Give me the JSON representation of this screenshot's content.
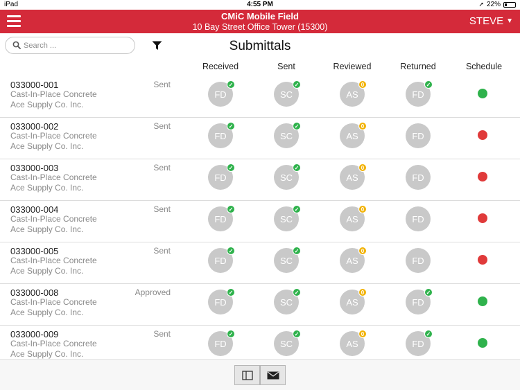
{
  "status_bar": {
    "carrier": "iPad",
    "time": "4:55 PM",
    "battery": "22%"
  },
  "header": {
    "app_title": "CMiC Mobile Field",
    "project": "10 Bay Street Office Tower (15300)",
    "user": "STEVE",
    "accent": "#d42a3a"
  },
  "search": {
    "placeholder": "Search ..."
  },
  "page_title": "Submittals",
  "columns": [
    "Received",
    "Sent",
    "Reviewed",
    "Returned",
    "Schedule"
  ],
  "colors": {
    "check": "#2fb24c",
    "count": "#f2b200",
    "on_time": "#2fb24c",
    "late": "#e03a3a",
    "circle": "#c9c9c9"
  },
  "rows": [
    {
      "number": "033000-001",
      "description": "Cast-In-Place Concrete",
      "vendor": "Ace Supply Co. Inc.",
      "status": "Sent",
      "received": {
        "initials": "FD",
        "badge": "check"
      },
      "sent": {
        "initials": "SC",
        "badge": "check"
      },
      "reviewed": {
        "initials": "AS",
        "badge": "0"
      },
      "returned": {
        "initials": "FD",
        "badge": "check"
      },
      "schedule": "green"
    },
    {
      "number": "033000-002",
      "description": "Cast-In-Place Concrete",
      "vendor": "Ace Supply Co. Inc.",
      "status": "Sent",
      "received": {
        "initials": "FD",
        "badge": "check"
      },
      "sent": {
        "initials": "SC",
        "badge": "check"
      },
      "reviewed": {
        "initials": "AS",
        "badge": "0"
      },
      "returned": {
        "initials": "FD",
        "badge": ""
      },
      "schedule": "red"
    },
    {
      "number": "033000-003",
      "description": "Cast-In-Place Concrete",
      "vendor": "Ace Supply Co. Inc.",
      "status": "Sent",
      "received": {
        "initials": "FD",
        "badge": "check"
      },
      "sent": {
        "initials": "SC",
        "badge": "check"
      },
      "reviewed": {
        "initials": "AS",
        "badge": "0"
      },
      "returned": {
        "initials": "FD",
        "badge": ""
      },
      "schedule": "red"
    },
    {
      "number": "033000-004",
      "description": "Cast-In-Place Concrete",
      "vendor": "Ace Supply Co. Inc.",
      "status": "Sent",
      "received": {
        "initials": "FD",
        "badge": "check"
      },
      "sent": {
        "initials": "SC",
        "badge": "check"
      },
      "reviewed": {
        "initials": "AS",
        "badge": "0"
      },
      "returned": {
        "initials": "FD",
        "badge": ""
      },
      "schedule": "red"
    },
    {
      "number": "033000-005",
      "description": "Cast-In-Place Concrete",
      "vendor": "Ace Supply Co. Inc.",
      "status": "Sent",
      "received": {
        "initials": "FD",
        "badge": "check"
      },
      "sent": {
        "initials": "SC",
        "badge": "check"
      },
      "reviewed": {
        "initials": "AS",
        "badge": "0"
      },
      "returned": {
        "initials": "FD",
        "badge": ""
      },
      "schedule": "red"
    },
    {
      "number": "033000-008",
      "description": "Cast-In-Place Concrete",
      "vendor": "Ace Supply Co. Inc.",
      "status": "Approved",
      "received": {
        "initials": "FD",
        "badge": "check"
      },
      "sent": {
        "initials": "SC",
        "badge": "check"
      },
      "reviewed": {
        "initials": "AS",
        "badge": "0"
      },
      "returned": {
        "initials": "FD",
        "badge": "check"
      },
      "schedule": "green"
    },
    {
      "number": "033000-009",
      "description": "Cast-In-Place Concrete",
      "vendor": "Ace Supply Co. Inc.",
      "status": "Sent",
      "received": {
        "initials": "FD",
        "badge": "check"
      },
      "sent": {
        "initials": "SC",
        "badge": "check"
      },
      "reviewed": {
        "initials": "AS",
        "badge": "0"
      },
      "returned": {
        "initials": "FD",
        "badge": "check"
      },
      "schedule": "green"
    }
  ],
  "toolbar": {
    "icons": [
      "split-view-icon",
      "mail-icon"
    ]
  }
}
